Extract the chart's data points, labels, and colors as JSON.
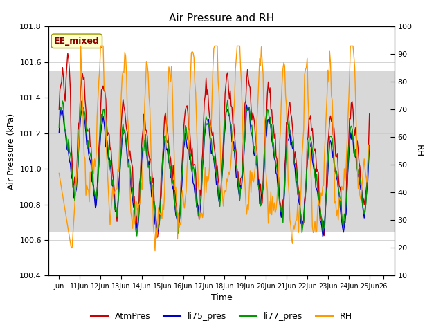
{
  "title": "Air Pressure and RH",
  "xlabel": "Time",
  "ylabel_left": "Air Pressure (kPa)",
  "ylabel_right": "RH",
  "annotation": "EE_mixed",
  "ylim_left": [
    100.4,
    101.8
  ],
  "ylim_right": [
    10,
    100
  ],
  "yticks_left": [
    100.4,
    100.6,
    100.8,
    101.0,
    101.2,
    101.4,
    101.6,
    101.8
  ],
  "yticks_right_major": [
    10,
    20,
    30,
    40,
    50,
    60,
    70,
    80,
    90,
    100
  ],
  "shaded_region": [
    100.65,
    101.55
  ],
  "shaded_color": "#d8d8d8",
  "background_color": "#ffffff",
  "colors": {
    "AtmPres": "#cc0000",
    "li75_pres": "#0000cc",
    "li77_pres": "#009900",
    "RH": "#ff9900"
  },
  "legend_labels": [
    "AtmPres",
    "li75_pres",
    "li77_pres",
    "RH"
  ],
  "xtick_positions": [
    0,
    1,
    2,
    3,
    4,
    5,
    6,
    7,
    8,
    9,
    10,
    11,
    12,
    13,
    14,
    15,
    15.67
  ],
  "xtick_labels": [
    "Jun",
    "11Jun",
    "12Jun",
    "13Jun",
    "14Jun",
    "15Jun",
    "16Jun",
    "17Jun",
    "18Jun",
    "19Jun",
    "20Jun",
    "21Jun",
    "22Jun",
    "23Jun",
    "24Jun",
    "25Jun",
    "26"
  ],
  "xlim": [
    -0.5,
    16.2
  ],
  "figsize": [
    6.4,
    4.8
  ],
  "dpi": 100
}
